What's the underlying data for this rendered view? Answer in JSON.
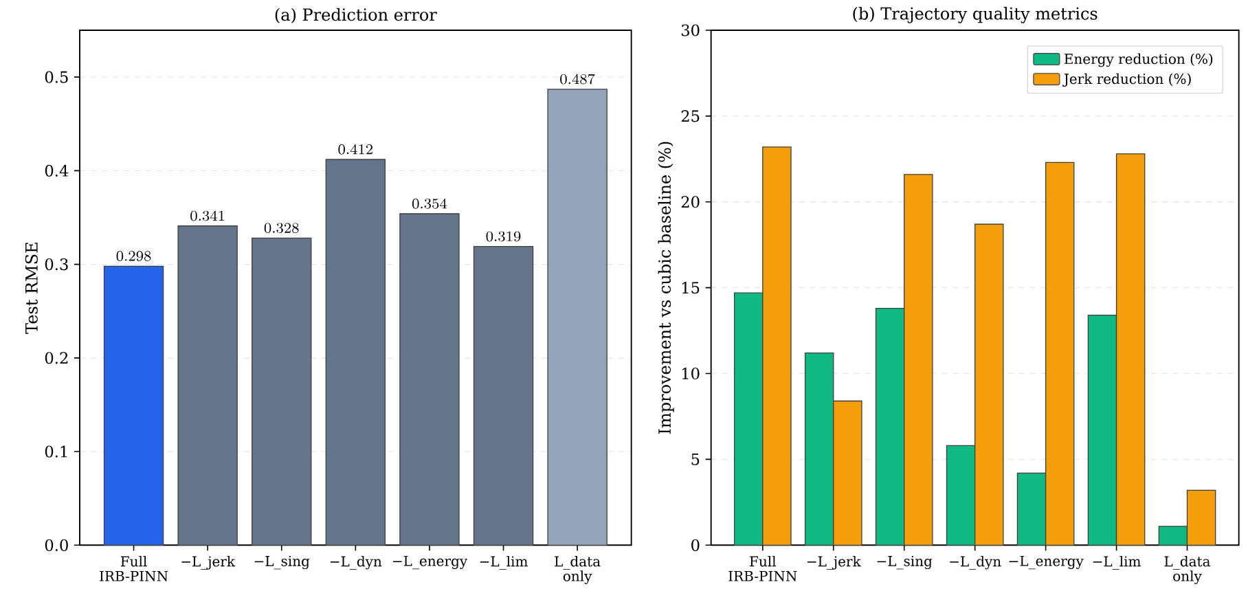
{
  "chart_data": [
    {
      "type": "bar",
      "title": "(a) Prediction error",
      "ylabel": "Test RMSE",
      "categories": [
        "Full IRB-PINN",
        "−L_jerk",
        "−L_sing",
        "−L_dyn",
        "−L_energy",
        "−L_lim",
        "L_data only"
      ],
      "values": [
        0.298,
        0.341,
        0.328,
        0.412,
        0.354,
        0.319,
        0.487
      ],
      "colors": [
        "#2563eb",
        "#64748b",
        "#64748b",
        "#64748b",
        "#64748b",
        "#64748b",
        "#94a3b8"
      ],
      "data_labels": true,
      "ylim": [
        0,
        0.55
      ],
      "yticks": [
        {
          "value": 0,
          "label": "0.0"
        },
        {
          "value": 0.1,
          "label": "0.1"
        },
        {
          "value": 0.2,
          "label": "0.2"
        },
        {
          "value": 0.3,
          "label": "0.3"
        },
        {
          "value": 0.4,
          "label": "0.4"
        },
        {
          "value": 0.5,
          "label": "0.5"
        }
      ],
      "grid": "y"
    },
    {
      "type": "bar",
      "title": "(b) Trajectory quality metrics",
      "ylabel": "Improvement vs cubic baseline (%)",
      "categories": [
        "Full IRB-PINN",
        "−L_jerk",
        "−L_sing",
        "−L_dyn",
        "−L_energy",
        "−L_lim",
        "L_data only"
      ],
      "series": [
        {
          "name": "Energy reduction (%)",
          "color": "#10b981",
          "values": [
            14.7,
            11.2,
            13.8,
            5.8,
            4.2,
            13.4,
            1.1
          ]
        },
        {
          "name": "Jerk reduction (%)",
          "color": "#f59e0b",
          "values": [
            23.2,
            8.4,
            21.6,
            18.7,
            22.3,
            22.8,
            3.2
          ]
        }
      ],
      "ylim": [
        0,
        30
      ],
      "yticks": [
        0,
        5,
        10,
        15,
        20,
        25,
        30
      ],
      "grid": "y",
      "legend": "top right"
    }
  ]
}
